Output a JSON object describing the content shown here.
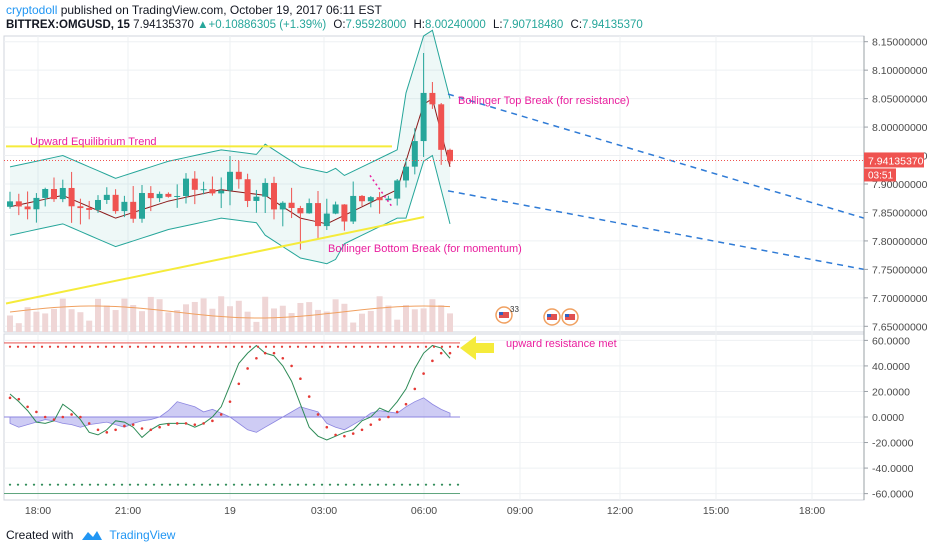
{
  "header": {
    "author": "cryptodoll",
    "published_text": "published on TradingView.com, October 19, 2017 06:11 EST",
    "symbol": "BITTREX:OMGUSD, 15",
    "last": "7.94135370",
    "change": "+0.10886305 (+1.39%)",
    "open_label": "O:",
    "open": "7.95928000",
    "high_label": "H:",
    "high": "8.00240000",
    "low_label": "L:",
    "low": "7.90718480",
    "close_label": "C:",
    "close": "7.94135370"
  },
  "footer": {
    "created_with": "Created with",
    "brand": "TradingView"
  },
  "colors": {
    "up": "#26a69a",
    "down": "#ef5350",
    "bb": "#26a69a",
    "ma": "#8b1a1a",
    "yellow": "#f5eb3b",
    "magenta": "#e91e9e",
    "blue": "#2f7bd6",
    "signal": "#e53935",
    "volume": "#efd6d6",
    "ema_vol": "#f0a060",
    "cloud": "#b9b6f0"
  },
  "chart_data": [
    {
      "type": "candlestick",
      "symbol": "BITTREX:OMGUSD",
      "interval": "15",
      "x_tick_labels": [
        "18:00",
        "21:00",
        "19",
        "03:00",
        "06:00",
        "09:00",
        "12:00",
        "15:00",
        "18:00"
      ],
      "y_tick_labels": [
        "8.15000000",
        "8.10000000",
        "8.05000000",
        "8.00000000",
        "7.95000000",
        "7.90000000",
        "7.85000000",
        "7.80000000",
        "7.75000000",
        "7.70000000",
        "7.65000000"
      ],
      "ylim": [
        7.64,
        8.16
      ],
      "last_price_label": "7.94135370",
      "countdown_label": "03:51",
      "annotations": [
        "Upward Equilibrium Trend",
        "Bollinger Top Break (for resistance)",
        "Bollinger Bottom Break (for momentum)"
      ],
      "event_badge": "33"
    },
    {
      "type": "line",
      "name": "oscillator",
      "y_tick_labels": [
        "60.0000",
        "40.0000",
        "20.0000",
        "0.0000",
        "-20.0000",
        "-40.0000",
        "-60.0000"
      ],
      "ylim": [
        -65,
        65
      ],
      "upper_band": 55,
      "lower_band": -53,
      "annotation": "upward resistance met",
      "line": [
        18,
        12,
        5,
        -4,
        -5,
        -3,
        10,
        5,
        -2,
        -12,
        -14,
        -10,
        -3,
        -4,
        -8,
        -16,
        -10,
        -6,
        -5,
        -5,
        -5,
        -8,
        -5,
        0,
        8,
        25,
        42,
        50,
        56,
        50,
        48,
        40,
        28,
        10,
        -8,
        -15,
        -18,
        -15,
        -12,
        -10,
        -3,
        0,
        7,
        4,
        12,
        22,
        38,
        50,
        56,
        54,
        46
      ],
      "signal": [
        15,
        14,
        8,
        4,
        0,
        -2,
        0,
        2,
        0,
        -5,
        -10,
        -12,
        -10,
        -7,
        -6,
        -9,
        -10,
        -8,
        -6,
        -5,
        -5,
        -6,
        -5,
        -3,
        2,
        12,
        26,
        38,
        46,
        50,
        50,
        46,
        40,
        30,
        16,
        2,
        -8,
        -14,
        -15,
        -13,
        -10,
        -6,
        -2,
        0,
        4,
        10,
        22,
        34,
        44,
        50,
        50
      ],
      "cloud": [
        -5,
        -8,
        -6,
        -4,
        -2,
        -3,
        -5,
        -6,
        -8,
        -6,
        -5,
        -4,
        -6,
        -8,
        -5,
        -3,
        -2,
        0,
        5,
        12,
        10,
        8,
        4,
        6,
        3,
        0,
        -5,
        -10,
        -12,
        -8,
        -4,
        0,
        4,
        8,
        6,
        4,
        -5,
        -8,
        -10,
        -6,
        -2,
        3,
        5,
        4,
        3,
        8,
        12,
        15,
        10,
        6,
        3
      ]
    }
  ]
}
